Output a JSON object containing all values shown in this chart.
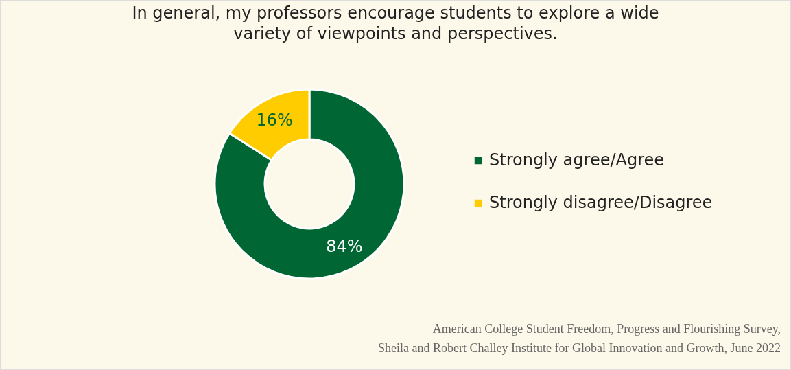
{
  "chart_data": {
    "type": "donut",
    "title": "In general, my professors encourage students to explore a wide\nvariety of viewpoints and perspectives.",
    "categories": [
      "Strongly agree/Agree",
      "Strongly disagree/Disagree"
    ],
    "values": [
      84,
      16
    ],
    "colors": [
      "#006633",
      "#ffcc00"
    ],
    "value_labels": [
      "84%",
      "16%"
    ],
    "legend": "right",
    "annotations": [
      "American College Student Freedom, Progress and Flourishing Survey,",
      "Sheila and Robert Challey Institute for Global Innovation and Growth, June 2022"
    ]
  }
}
